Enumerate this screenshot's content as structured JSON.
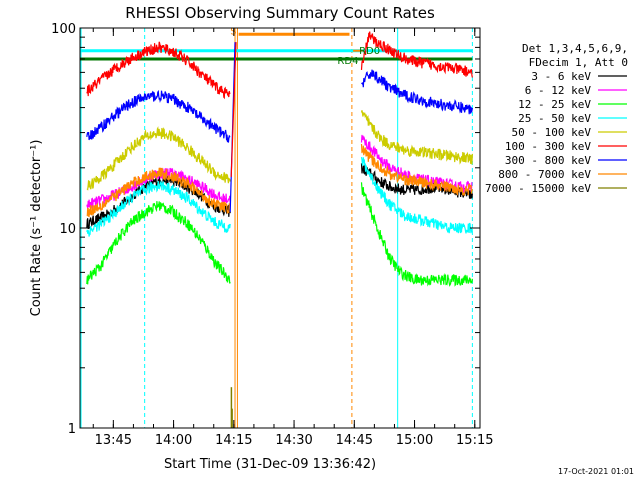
{
  "chart_data": {
    "type": "line",
    "title": "RHESSI Observing Summary Count Rates",
    "xlabel": "Start Time (31-Dec-09 13:36:42)",
    "ylabel": "Count Rate (s⁻¹ detector⁻¹)",
    "footer": "17-Oct-2021 01:01",
    "y_scale": "log",
    "ylim": [
      1,
      100
    ],
    "xlim": [
      13.611667,
      15.271667
    ],
    "yticks": [
      1,
      10,
      100
    ],
    "xticks": [
      {
        "t": 13.75,
        "label": "13:45"
      },
      {
        "t": 14.0,
        "label": "14:00"
      },
      {
        "t": 14.25,
        "label": "14:15"
      },
      {
        "t": 14.5,
        "label": "14:30"
      },
      {
        "t": 14.75,
        "label": "14:45"
      },
      {
        "t": 15.0,
        "label": "15:00"
      },
      {
        "t": 15.25,
        "label": "15:15"
      }
    ],
    "legend_header": [
      "Det 1,3,4,5,6,9,",
      "FDecim 1, Att 0"
    ],
    "series": [
      {
        "name": "3 - 6 keV",
        "color": "#000000",
        "pre": [
          [
            13.64,
            10.5
          ],
          [
            13.72,
            11.5
          ],
          [
            13.8,
            13.5
          ],
          [
            13.86,
            15.5
          ],
          [
            13.92,
            17.0
          ],
          [
            13.98,
            17.5
          ],
          [
            14.04,
            16.5
          ],
          [
            14.1,
            15.0
          ],
          [
            14.16,
            13.0
          ],
          [
            14.2,
            12.5
          ],
          [
            14.235,
            12.0
          ]
        ],
        "post": [
          [
            14.78,
            20.0
          ],
          [
            14.82,
            18.5
          ],
          [
            14.86,
            17.0
          ],
          [
            14.9,
            16.0
          ],
          [
            14.96,
            15.5
          ],
          [
            15.02,
            15.5
          ],
          [
            15.08,
            16.0
          ],
          [
            15.14,
            15.5
          ],
          [
            15.2,
            15.0
          ],
          [
            15.24,
            14.5
          ]
        ]
      },
      {
        "name": "6 - 12 keV",
        "color": "#ff00ff",
        "pre": [
          [
            13.64,
            13.0
          ],
          [
            13.72,
            14.0
          ],
          [
            13.8,
            15.5
          ],
          [
            13.86,
            17.0
          ],
          [
            13.92,
            18.5
          ],
          [
            13.98,
            19.0
          ],
          [
            14.04,
            18.0
          ],
          [
            14.1,
            16.5
          ],
          [
            14.16,
            15.0
          ],
          [
            14.2,
            14.0
          ],
          [
            14.235,
            14.0
          ]
        ],
        "post": [
          [
            14.78,
            28.0
          ],
          [
            14.82,
            25.0
          ],
          [
            14.86,
            22.0
          ],
          [
            14.9,
            20.0
          ],
          [
            14.96,
            18.5
          ],
          [
            15.02,
            17.5
          ],
          [
            15.08,
            17.0
          ],
          [
            15.14,
            16.5
          ],
          [
            15.2,
            16.0
          ],
          [
            15.24,
            16.0
          ]
        ]
      },
      {
        "name": "12 - 25 keV",
        "color": "#00ff00",
        "pre": [
          [
            13.64,
            5.5
          ],
          [
            13.7,
            6.5
          ],
          [
            13.76,
            8.5
          ],
          [
            13.82,
            10.5
          ],
          [
            13.88,
            12.0
          ],
          [
            13.94,
            13.0
          ],
          [
            14.0,
            12.0
          ],
          [
            14.06,
            10.5
          ],
          [
            14.12,
            8.5
          ],
          [
            14.18,
            6.5
          ],
          [
            14.235,
            5.5
          ]
        ],
        "post": [
          [
            14.78,
            16.0
          ],
          [
            14.82,
            12.0
          ],
          [
            14.86,
            9.0
          ],
          [
            14.9,
            7.0
          ],
          [
            14.94,
            6.0
          ],
          [
            15.0,
            5.5
          ],
          [
            15.08,
            5.5
          ],
          [
            15.16,
            5.5
          ],
          [
            15.24,
            5.5
          ]
        ]
      },
      {
        "name": "25 - 50 keV",
        "color": "#00ffff",
        "pre": [
          [
            13.64,
            9.5
          ],
          [
            13.7,
            10.5
          ],
          [
            13.76,
            12.0
          ],
          [
            13.82,
            14.0
          ],
          [
            13.88,
            15.5
          ],
          [
            13.94,
            16.5
          ],
          [
            14.0,
            15.5
          ],
          [
            14.06,
            14.0
          ],
          [
            14.12,
            12.0
          ],
          [
            14.18,
            10.5
          ],
          [
            14.235,
            10.0
          ]
        ],
        "post": [
          [
            14.78,
            22.0
          ],
          [
            14.82,
            18.0
          ],
          [
            14.86,
            15.0
          ],
          [
            14.9,
            13.0
          ],
          [
            14.96,
            11.5
          ],
          [
            15.02,
            11.0
          ],
          [
            15.08,
            10.5
          ],
          [
            15.14,
            10.0
          ],
          [
            15.2,
            10.0
          ],
          [
            15.24,
            10.0
          ]
        ]
      },
      {
        "name": "50 - 100 keV",
        "color": "#cccc00",
        "pre": [
          [
            13.64,
            16.0
          ],
          [
            13.7,
            18.0
          ],
          [
            13.76,
            21.0
          ],
          [
            13.82,
            25.0
          ],
          [
            13.88,
            28.5
          ],
          [
            13.94,
            30.0
          ],
          [
            14.0,
            28.5
          ],
          [
            14.06,
            25.0
          ],
          [
            14.12,
            21.5
          ],
          [
            14.18,
            18.5
          ],
          [
            14.235,
            17.5
          ]
        ],
        "post": [
          [
            14.78,
            38.0
          ],
          [
            14.82,
            32.0
          ],
          [
            14.86,
            28.0
          ],
          [
            14.9,
            26.0
          ],
          [
            14.96,
            24.5
          ],
          [
            15.02,
            24.0
          ],
          [
            15.08,
            23.5
          ],
          [
            15.14,
            23.0
          ],
          [
            15.2,
            22.5
          ],
          [
            15.24,
            22.0
          ]
        ]
      },
      {
        "name": "100 - 300 keV",
        "color": "#ff0000",
        "pre": [
          [
            13.64,
            48.0
          ],
          [
            13.7,
            55.0
          ],
          [
            13.76,
            63.0
          ],
          [
            13.82,
            70.0
          ],
          [
            13.88,
            76.0
          ],
          [
            13.94,
            80.0
          ],
          [
            14.0,
            76.0
          ],
          [
            14.06,
            68.0
          ],
          [
            14.12,
            58.0
          ],
          [
            14.18,
            50.0
          ],
          [
            14.235,
            46.0
          ]
        ],
        "post": [
          [
            14.78,
            62.0
          ],
          [
            14.81,
            92.0
          ],
          [
            14.84,
            85.0
          ],
          [
            14.88,
            80.0
          ],
          [
            14.94,
            72.0
          ],
          [
            15.0,
            68.0
          ],
          [
            15.06,
            66.0
          ],
          [
            15.12,
            64.0
          ],
          [
            15.18,
            62.0
          ],
          [
            15.24,
            60.0
          ]
        ]
      },
      {
        "name": "300 - 800 keV",
        "color": "#0000ff",
        "pre": [
          [
            13.64,
            28.0
          ],
          [
            13.7,
            32.0
          ],
          [
            13.76,
            37.0
          ],
          [
            13.82,
            42.0
          ],
          [
            13.88,
            45.0
          ],
          [
            13.94,
            46.0
          ],
          [
            14.0,
            44.0
          ],
          [
            14.06,
            40.0
          ],
          [
            14.12,
            35.0
          ],
          [
            14.18,
            31.0
          ],
          [
            14.235,
            28.0
          ]
        ],
        "post": [
          [
            14.78,
            52.0
          ],
          [
            14.82,
            60.0
          ],
          [
            14.86,
            55.0
          ],
          [
            14.9,
            50.0
          ],
          [
            14.96,
            46.0
          ],
          [
            15.02,
            44.0
          ],
          [
            15.08,
            42.0
          ],
          [
            15.14,
            41.0
          ],
          [
            15.2,
            40.0
          ],
          [
            15.24,
            39.0
          ]
        ]
      },
      {
        "name": "800 - 7000 keV",
        "color": "#ff8800",
        "pre": [
          [
            13.64,
            12.0
          ],
          [
            13.7,
            13.0
          ],
          [
            13.76,
            14.5
          ],
          [
            13.82,
            16.5
          ],
          [
            13.88,
            18.0
          ],
          [
            13.94,
            19.0
          ],
          [
            14.0,
            18.0
          ],
          [
            14.06,
            16.5
          ],
          [
            14.12,
            14.5
          ],
          [
            14.18,
            13.0
          ],
          [
            14.235,
            12.5
          ]
        ],
        "post": [
          [
            14.78,
            25.0
          ],
          [
            14.82,
            22.0
          ],
          [
            14.86,
            20.0
          ],
          [
            14.9,
            18.5
          ],
          [
            14.96,
            17.5
          ],
          [
            15.02,
            17.0
          ],
          [
            15.08,
            16.5
          ],
          [
            15.14,
            16.0
          ],
          [
            15.2,
            15.5
          ],
          [
            15.24,
            15.5
          ]
        ]
      },
      {
        "name": "7000 - 15000 keV",
        "color": "#808000",
        "pre": [],
        "post": []
      }
    ],
    "markers": [
      {
        "type": "vline",
        "t": 13.88,
        "color": "#00ffff",
        "dashed": true
      },
      {
        "type": "vline",
        "t": 13.616,
        "color": "#00ffff",
        "dashed": false
      },
      {
        "type": "vline",
        "t": 14.255,
        "color": "#ff8800",
        "dashed": false
      },
      {
        "type": "vline",
        "t": 14.265,
        "color": "#ff8800",
        "dashed": false
      },
      {
        "type": "vline",
        "t": 14.74,
        "color": "#ff8800",
        "dashed": true
      },
      {
        "type": "vline",
        "t": 14.93,
        "color": "#00ffff",
        "dashed": false
      },
      {
        "type": "vline",
        "t": 15.24,
        "color": "#00ffff",
        "dashed": true
      },
      {
        "type": "hbar",
        "t1": 13.611667,
        "t2": 15.24,
        "y": 77,
        "color": "#00ffff",
        "width": 3
      },
      {
        "type": "hbar",
        "t1": 13.611667,
        "t2": 15.24,
        "y": 70,
        "color": "#007700",
        "width": 3
      },
      {
        "type": "hbar",
        "t1": 14.27,
        "t2": 14.73,
        "y": 93,
        "color": "#ff8800",
        "width": 3
      },
      {
        "type": "hbar",
        "t1": 14.745,
        "t2": 14.785,
        "y": 77,
        "color": "#ff8800",
        "width": 2
      }
    ],
    "annotations": [
      {
        "text": "S",
        "t": 14.235,
        "y": 93,
        "color": "#ff8800"
      },
      {
        "text": "RD4",
        "t": 14.68,
        "y": 66,
        "color": "#007700"
      },
      {
        "text": "RD0",
        "t": 14.77,
        "y": 74,
        "color": "#007700"
      }
    ],
    "spikes": [
      {
        "t": 14.24,
        "y1": 1,
        "y2": 1.6,
        "color": "#808000"
      },
      {
        "t": 14.243,
        "y1": 1,
        "y2": 1.25,
        "color": "#808000"
      }
    ],
    "rise": {
      "t1": 14.235,
      "t2": 14.255,
      "bottom": 12,
      "top": 85
    }
  }
}
